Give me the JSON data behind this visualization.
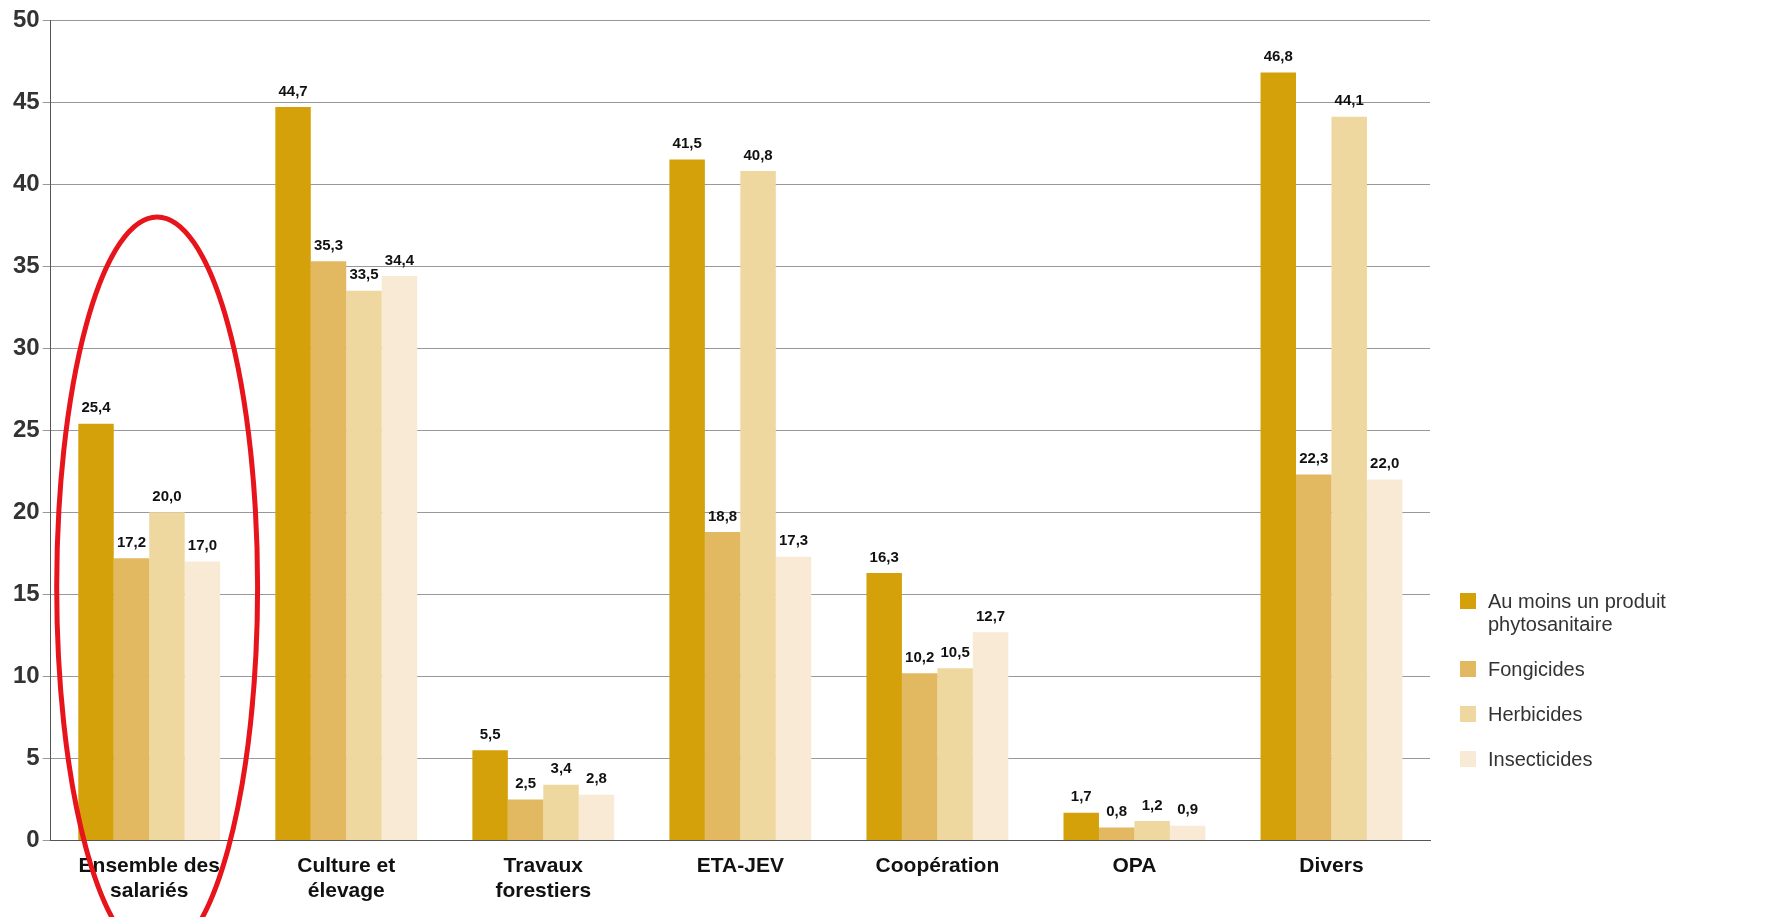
{
  "chart_data": {
    "type": "bar",
    "categories": [
      "Ensemble des salariés",
      "Culture et élevage",
      "Travaux forestiers",
      "ETA-JEV",
      "Coopération",
      "OPA",
      "Divers"
    ],
    "series": [
      {
        "name": "Au moins un produit phytosanitaire",
        "color": "#d4a10a",
        "values": [
          25.4,
          44.7,
          5.5,
          41.5,
          16.3,
          1.7,
          46.8
        ],
        "value_labels": [
          "25,4",
          "44,7",
          "5,5",
          "41,5",
          "16,3",
          "1,7",
          "46,8"
        ]
      },
      {
        "name": "Fongicides",
        "color": "#e2b860",
        "values": [
          17.2,
          35.3,
          2.5,
          18.8,
          10.2,
          0.8,
          22.3
        ],
        "value_labels": [
          "17,2",
          "35,3",
          "2,5",
          "18,8",
          "10,2",
          "0,8",
          "22,3"
        ]
      },
      {
        "name": "Herbicides",
        "color": "#efd7a0",
        "values": [
          20.0,
          33.5,
          3.4,
          40.8,
          10.5,
          1.2,
          44.1
        ],
        "value_labels": [
          "20,0",
          "33,5",
          "3,4",
          "40,8",
          "10,5",
          "1,2",
          "44,1"
        ]
      },
      {
        "name": "Insecticides",
        "color": "#f8ead5",
        "values": [
          17.0,
          34.4,
          2.8,
          17.3,
          12.7,
          0.9,
          22.0
        ],
        "value_labels": [
          "17,0",
          "34,4",
          "2,8",
          "17,3",
          "12,7",
          "0,9",
          "22,0"
        ]
      }
    ],
    "ylim": [
      0,
      50
    ],
    "yticks": [
      0,
      5,
      10,
      15,
      20,
      25,
      30,
      35,
      40,
      45,
      50
    ],
    "grid": "y",
    "legend": "right"
  }
}
